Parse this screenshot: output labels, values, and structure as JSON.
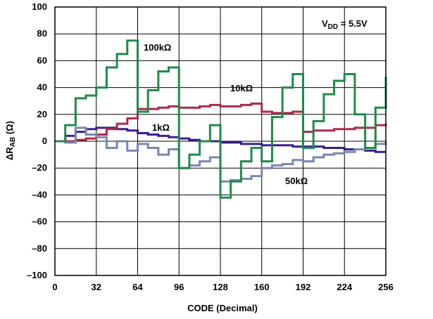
{
  "chart_data": {
    "type": "line",
    "title": "",
    "xlabel": "CODE (Decimal)",
    "ylabel": {
      "main": "ΔR",
      "sub": "AB",
      "unit": " (Ω)"
    },
    "xlim": [
      0,
      256
    ],
    "ylim": [
      -100,
      100
    ],
    "xticks": [
      0,
      32,
      64,
      96,
      128,
      160,
      192,
      224,
      256
    ],
    "yticks": [
      -100,
      -80,
      -60,
      -40,
      -20,
      0,
      20,
      40,
      60,
      80,
      100
    ],
    "grid": true,
    "annotation": {
      "main": "V",
      "sub": "DD",
      "rest": " = 5.5V"
    },
    "series": [
      {
        "name": "1kΩ",
        "color": "#3a1f8f",
        "x": [
          0,
          8,
          16,
          24,
          32,
          40,
          48,
          56,
          64,
          72,
          80,
          88,
          96,
          104,
          112,
          120,
          128,
          136,
          144,
          152,
          160,
          168,
          176,
          184,
          192,
          200,
          208,
          216,
          224,
          232,
          240,
          248,
          256
        ],
        "y": [
          0,
          4,
          7,
          9,
          10,
          10,
          9,
          8,
          6,
          5,
          4,
          3,
          2,
          1,
          0,
          0,
          -1,
          -1,
          -2,
          -2,
          -3,
          -3,
          -3,
          -4,
          -4,
          -4,
          -5,
          -5,
          -6,
          -6,
          -7,
          -8,
          -8
        ]
      },
      {
        "name": "10kΩ",
        "color": "#b0284a",
        "x": [
          0,
          8,
          16,
          24,
          32,
          40,
          48,
          56,
          64,
          72,
          80,
          88,
          96,
          104,
          112,
          120,
          128,
          136,
          144,
          152,
          160,
          168,
          176,
          184,
          192,
          200,
          208,
          216,
          224,
          232,
          240,
          248,
          256
        ],
        "y": [
          0,
          0,
          1,
          2,
          5,
          9,
          13,
          17,
          24,
          24,
          25,
          26,
          25,
          25,
          26,
          27,
          26,
          26,
          27,
          28,
          22,
          21,
          21,
          22,
          7,
          8,
          8,
          9,
          9,
          10,
          10,
          12,
          13
        ]
      },
      {
        "name": "50kΩ",
        "color": "#7a86b0",
        "x": [
          0,
          8,
          16,
          24,
          32,
          40,
          48,
          56,
          64,
          72,
          80,
          88,
          96,
          104,
          112,
          120,
          128,
          136,
          144,
          152,
          160,
          168,
          176,
          184,
          192,
          200,
          208,
          216,
          224,
          232,
          240,
          248,
          256
        ],
        "y": [
          0,
          -1,
          10,
          5,
          3,
          -5,
          0,
          -7,
          -2,
          -5,
          -10,
          -6,
          -20,
          -18,
          -15,
          -12,
          -30,
          -29,
          -28,
          -26,
          -20,
          -18,
          -17,
          -14,
          -15,
          -12,
          -10,
          -9,
          -8,
          -6,
          -5,
          -2,
          0
        ]
      },
      {
        "name": "100kΩ",
        "color": "#1f8a4a",
        "x": [
          0,
          8,
          16,
          24,
          32,
          40,
          48,
          56,
          64,
          72,
          80,
          88,
          96,
          104,
          112,
          120,
          128,
          136,
          144,
          152,
          160,
          168,
          176,
          184,
          192,
          200,
          208,
          216,
          224,
          232,
          240,
          248,
          256
        ],
        "y": [
          0,
          12,
          32,
          34,
          40,
          55,
          65,
          75,
          22,
          38,
          52,
          55,
          -20,
          -10,
          0,
          12,
          -42,
          -30,
          -15,
          -5,
          -15,
          18,
          40,
          50,
          -5,
          15,
          35,
          45,
          50,
          20,
          -5,
          25,
          48
        ]
      }
    ]
  }
}
